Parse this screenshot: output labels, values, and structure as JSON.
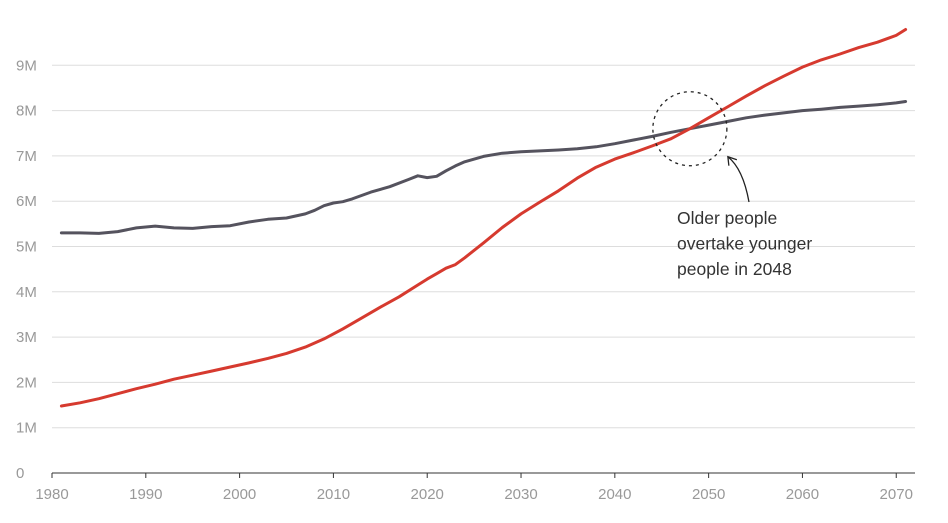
{
  "chart_data": {
    "type": "line",
    "title": "",
    "xlabel": "",
    "ylabel": "",
    "xlim": [
      1980,
      2072
    ],
    "ylim": [
      0,
      10
    ],
    "grid": true,
    "legend": "none",
    "y_ticks": [
      {
        "value": 0,
        "label": "0"
      },
      {
        "value": 1,
        "label": "1M"
      },
      {
        "value": 2,
        "label": "2M"
      },
      {
        "value": 3,
        "label": "3M"
      },
      {
        "value": 4,
        "label": "4M"
      },
      {
        "value": 5,
        "label": "5M"
      },
      {
        "value": 6,
        "label": "6M"
      },
      {
        "value": 7,
        "label": "7M"
      },
      {
        "value": 8,
        "label": "8M"
      },
      {
        "value": 9,
        "label": "9M"
      }
    ],
    "x_ticks": [
      {
        "value": 1980,
        "label": "1980"
      },
      {
        "value": 1990,
        "label": "1990"
      },
      {
        "value": 2000,
        "label": "2000"
      },
      {
        "value": 2010,
        "label": "2010"
      },
      {
        "value": 2020,
        "label": "2020"
      },
      {
        "value": 2030,
        "label": "2030"
      },
      {
        "value": 2040,
        "label": "2040"
      },
      {
        "value": 2050,
        "label": "2050"
      },
      {
        "value": 2060,
        "label": "2060"
      },
      {
        "value": 2070,
        "label": "2070"
      }
    ],
    "series": [
      {
        "color": "#55535e",
        "points": [
          [
            1981,
            5.3
          ],
          [
            1983,
            5.3
          ],
          [
            1985,
            5.29
          ],
          [
            1987,
            5.33
          ],
          [
            1989,
            5.41
          ],
          [
            1991,
            5.45
          ],
          [
            1993,
            5.41
          ],
          [
            1995,
            5.4
          ],
          [
            1997,
            5.44
          ],
          [
            1999,
            5.46
          ],
          [
            2001,
            5.54
          ],
          [
            2003,
            5.6
          ],
          [
            2005,
            5.63
          ],
          [
            2007,
            5.72
          ],
          [
            2008,
            5.8
          ],
          [
            2009,
            5.9
          ],
          [
            2010,
            5.96
          ],
          [
            2011,
            5.99
          ],
          [
            2012,
            6.05
          ],
          [
            2014,
            6.2
          ],
          [
            2016,
            6.32
          ],
          [
            2018,
            6.48
          ],
          [
            2019,
            6.56
          ],
          [
            2020,
            6.52
          ],
          [
            2021,
            6.55
          ],
          [
            2022,
            6.67
          ],
          [
            2023,
            6.78
          ],
          [
            2024,
            6.87
          ],
          [
            2026,
            6.99
          ],
          [
            2028,
            7.06
          ],
          [
            2030,
            7.09
          ],
          [
            2032,
            7.11
          ],
          [
            2034,
            7.13
          ],
          [
            2036,
            7.16
          ],
          [
            2038,
            7.2
          ],
          [
            2040,
            7.27
          ],
          [
            2042,
            7.35
          ],
          [
            2044,
            7.43
          ],
          [
            2046,
            7.52
          ],
          [
            2048,
            7.6
          ],
          [
            2050,
            7.68
          ],
          [
            2052,
            7.76
          ],
          [
            2054,
            7.84
          ],
          [
            2056,
            7.9
          ],
          [
            2058,
            7.95
          ],
          [
            2060,
            8.0
          ],
          [
            2062,
            8.03
          ],
          [
            2064,
            8.07
          ],
          [
            2066,
            8.1
          ],
          [
            2068,
            8.13
          ],
          [
            2070,
            8.17
          ],
          [
            2071,
            8.2
          ]
        ]
      },
      {
        "color": "#d63a2f",
        "points": [
          [
            1981,
            1.48
          ],
          [
            1983,
            1.55
          ],
          [
            1985,
            1.64
          ],
          [
            1987,
            1.75
          ],
          [
            1989,
            1.86
          ],
          [
            1991,
            1.96
          ],
          [
            1993,
            2.07
          ],
          [
            1995,
            2.16
          ],
          [
            1997,
            2.25
          ],
          [
            1999,
            2.34
          ],
          [
            2001,
            2.43
          ],
          [
            2003,
            2.53
          ],
          [
            2005,
            2.64
          ],
          [
            2007,
            2.78
          ],
          [
            2009,
            2.96
          ],
          [
            2011,
            3.18
          ],
          [
            2013,
            3.42
          ],
          [
            2015,
            3.66
          ],
          [
            2017,
            3.89
          ],
          [
            2019,
            4.15
          ],
          [
            2020,
            4.28
          ],
          [
            2021,
            4.4
          ],
          [
            2022,
            4.52
          ],
          [
            2023,
            4.6
          ],
          [
            2024,
            4.75
          ],
          [
            2026,
            5.08
          ],
          [
            2028,
            5.42
          ],
          [
            2030,
            5.72
          ],
          [
            2032,
            5.98
          ],
          [
            2034,
            6.23
          ],
          [
            2036,
            6.51
          ],
          [
            2038,
            6.75
          ],
          [
            2040,
            6.93
          ],
          [
            2042,
            7.07
          ],
          [
            2044,
            7.22
          ],
          [
            2046,
            7.38
          ],
          [
            2048,
            7.6
          ],
          [
            2050,
            7.84
          ],
          [
            2052,
            8.08
          ],
          [
            2054,
            8.32
          ],
          [
            2056,
            8.55
          ],
          [
            2058,
            8.76
          ],
          [
            2060,
            8.96
          ],
          [
            2062,
            9.12
          ],
          [
            2064,
            9.25
          ],
          [
            2066,
            9.39
          ],
          [
            2068,
            9.51
          ],
          [
            2070,
            9.66
          ],
          [
            2071,
            9.79
          ]
        ]
      }
    ],
    "annotations": [
      {
        "lines": [
          "Older people",
          "overtake younger",
          "people in 2048"
        ],
        "target": [
          2048,
          7.6
        ]
      }
    ]
  }
}
